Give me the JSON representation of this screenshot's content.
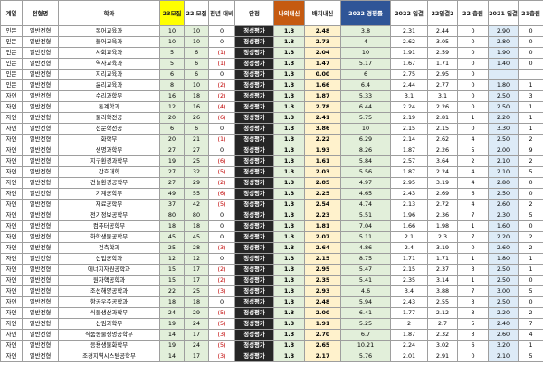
{
  "headers": [
    "계열",
    "전형명",
    "학과",
    "23모집",
    "22 모집",
    "전년 대비",
    "안정",
    "나의내신",
    "배치내신",
    "2022 경쟁률",
    "2022 입결",
    "22입결2",
    "22 충원",
    "2021 입결",
    "21충원"
  ],
  "rows": [
    [
      "인문",
      "일반전형",
      "독어교육과",
      "10",
      "10",
      "0",
      "정성평가",
      "1.3",
      "2.48",
      "3.8",
      "2.31",
      "2.44",
      "0",
      "2.90",
      "0"
    ],
    [
      "인문",
      "일반전형",
      "불어교육과",
      "10",
      "10",
      "0",
      "정성평가",
      "1.3",
      "2.73",
      "4",
      "2.62",
      "3.05",
      "0",
      "2.80",
      "0"
    ],
    [
      "인문",
      "일반전형",
      "사회교육과",
      "5",
      "6",
      "(1)",
      "정성평가",
      "1.3",
      "2.04",
      "10",
      "1.91",
      "2.59",
      "0",
      "1.90",
      "0"
    ],
    [
      "인문",
      "일반전형",
      "역사교육과",
      "5",
      "6",
      "(1)",
      "정성평가",
      "1.3",
      "1.47",
      "5.17",
      "1.67",
      "1.71",
      "0",
      "1.40",
      "0"
    ],
    [
      "인문",
      "일반전형",
      "지리교육과",
      "6",
      "6",
      "0",
      "정성평가",
      "1.3",
      "0.00",
      "6",
      "2.75",
      "2.95",
      "0",
      "",
      ""
    ],
    [
      "인문",
      "일반전형",
      "윤리교육과",
      "8",
      "10",
      "(2)",
      "정성평가",
      "1.3",
      "1.66",
      "6.4",
      "2.44",
      "2.77",
      "0",
      "1.80",
      "1"
    ],
    [
      "자연",
      "일반전형",
      "수리과학부",
      "16",
      "18",
      "(2)",
      "정성평가",
      "1.3",
      "1.87",
      "5.33",
      "3.1",
      "3.1",
      "0",
      "2.50",
      "3"
    ],
    [
      "자연",
      "일반전형",
      "통계학과",
      "12",
      "16",
      "(4)",
      "정성평가",
      "1.3",
      "2.78",
      "6.44",
      "2.24",
      "2.26",
      "0",
      "2.50",
      "1"
    ],
    [
      "자연",
      "일반전형",
      "물리학전공",
      "20",
      "26",
      "(6)",
      "정성평가",
      "1.3",
      "2.41",
      "5.75",
      "2.19",
      "2.81",
      "1",
      "2.20",
      "1"
    ],
    [
      "자연",
      "일반전형",
      "천문학전공",
      "6",
      "6",
      "0",
      "정성평가",
      "1.3",
      "3.86",
      "10",
      "2.15",
      "2.15",
      "0",
      "3.30",
      "1"
    ],
    [
      "자연",
      "일반전형",
      "화학부",
      "20",
      "21",
      "(1)",
      "정성평가",
      "1.3",
      "2.22",
      "6.29",
      "2.14",
      "2.62",
      "4",
      "2.50",
      "2"
    ],
    [
      "자연",
      "일반전형",
      "생명과학부",
      "27",
      "27",
      "0",
      "정성평가",
      "1.3",
      "1.93",
      "8.26",
      "1.87",
      "2.26",
      "5",
      "2.00",
      "9"
    ],
    [
      "자연",
      "일반전형",
      "지구환경과학부",
      "19",
      "25",
      "(6)",
      "정성평가",
      "1.3",
      "1.61",
      "5.84",
      "2.57",
      "3.64",
      "2",
      "2.10",
      "2"
    ],
    [
      "자연",
      "일반전형",
      "간호대학",
      "27",
      "32",
      "(5)",
      "정성평가",
      "1.3",
      "2.03",
      "5.56",
      "1.87",
      "2.24",
      "4",
      "2.10",
      "5"
    ],
    [
      "자연",
      "일반전형",
      "건설환경공학부",
      "27",
      "29",
      "(2)",
      "정성평가",
      "1.3",
      "2.85",
      "4.97",
      "2.95",
      "3.19",
      "4",
      "2.80",
      "0"
    ],
    [
      "자연",
      "일반전형",
      "기계공학부",
      "49",
      "55",
      "(6)",
      "정성평가",
      "1.3",
      "2.25",
      "4.65",
      "2.43",
      "2.69",
      "6",
      "2.50",
      "0"
    ],
    [
      "자연",
      "일반전형",
      "재료공학부",
      "37",
      "42",
      "(5)",
      "정성평가",
      "1.3",
      "2.54",
      "4.74",
      "2.13",
      "2.72",
      "4",
      "2.60",
      "2"
    ],
    [
      "자연",
      "일반전형",
      "전기정보공학부",
      "80",
      "80",
      "0",
      "정성평가",
      "1.3",
      "2.23",
      "5.51",
      "1.96",
      "2.36",
      "7",
      "2.30",
      "5"
    ],
    [
      "자연",
      "일반전형",
      "컴퓨터공학부",
      "18",
      "18",
      "0",
      "정성평가",
      "1.3",
      "1.81",
      "7.04",
      "1.66",
      "1.98",
      "1",
      "1.60",
      "0"
    ],
    [
      "자연",
      "일반전형",
      "화학생물공학부",
      "45",
      "45",
      "0",
      "정성평가",
      "1.3",
      "2.07",
      "5.11",
      "2.1",
      "2.3",
      "7",
      "2.20",
      "2"
    ],
    [
      "자연",
      "일반전형",
      "건축학과",
      "25",
      "28",
      "(3)",
      "정성평가",
      "1.3",
      "2.64",
      "4.86",
      "2.4",
      "3.19",
      "0",
      "2.60",
      "2"
    ],
    [
      "자연",
      "일반전형",
      "산업공학과",
      "12",
      "12",
      "0",
      "정성평가",
      "1.3",
      "2.15",
      "8.75",
      "1.71",
      "1.71",
      "1",
      "1.80",
      "1"
    ],
    [
      "자연",
      "일반전형",
      "에너지자원공학과",
      "15",
      "17",
      "(2)",
      "정성평가",
      "1.3",
      "2.95",
      "5.47",
      "2.15",
      "2.37",
      "3",
      "2.50",
      "1"
    ],
    [
      "자연",
      "일반전형",
      "원자핵공학과",
      "15",
      "17",
      "(2)",
      "정성평가",
      "1.3",
      "2.35",
      "5.41",
      "2.35",
      "3.14",
      "1",
      "2.50",
      "0"
    ],
    [
      "자연",
      "일반전형",
      "조선해양공학과",
      "22",
      "25",
      "(3)",
      "정성평가",
      "1.3",
      "2.93",
      "4.6",
      "3.4",
      "3.88",
      "7",
      "3.00",
      "5"
    ],
    [
      "자연",
      "일반전형",
      "항공우주공학과",
      "18",
      "18",
      "0",
      "정성평가",
      "1.3",
      "2.48",
      "5.94",
      "2.43",
      "2.55",
      "3",
      "2.50",
      "0"
    ],
    [
      "자연",
      "일반전형",
      "식물생산과학부",
      "24",
      "29",
      "(5)",
      "정성평가",
      "1.3",
      "2.00",
      "6.41",
      "1.77",
      "2.12",
      "3",
      "2.20",
      "2"
    ],
    [
      "자연",
      "일반전형",
      "산림과학부",
      "19",
      "24",
      "(5)",
      "정성평가",
      "1.3",
      "1.91",
      "5.25",
      "2",
      "2.7",
      "5",
      "2.40",
      "7"
    ],
    [
      "자연",
      "일반전형",
      "식품동물생명공학부",
      "14",
      "17",
      "(3)",
      "정성평가",
      "1.3",
      "2.70",
      "6.7",
      "1.87",
      "2.32",
      "3",
      "2.60",
      "4"
    ],
    [
      "자연",
      "일반전형",
      "응용생물화학부",
      "19",
      "24",
      "(5)",
      "정성평가",
      "1.3",
      "2.65",
      "10.21",
      "2.24",
      "3.02",
      "6",
      "3.20",
      "1"
    ],
    [
      "자연",
      "일반전형",
      "조경지역시스템공학부",
      "14",
      "17",
      "(3)",
      "정성평가",
      "1.3",
      "2.17",
      "5.76",
      "2.01",
      "2.91",
      "0",
      "2.10",
      "5"
    ]
  ]
}
